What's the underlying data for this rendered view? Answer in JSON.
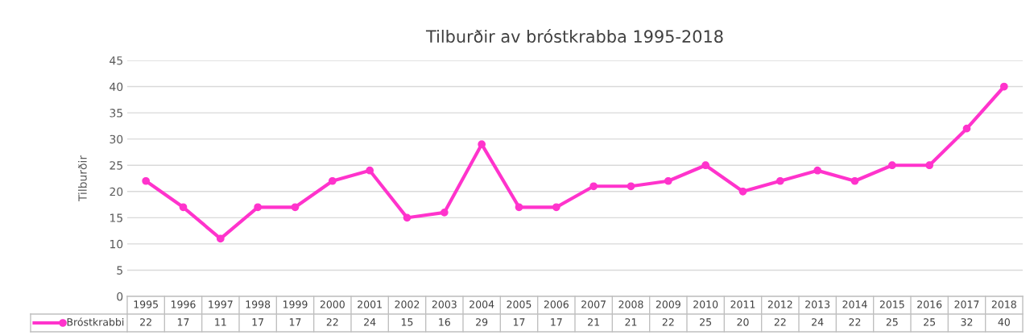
{
  "chart_data": {
    "type": "line",
    "title": "Tilburðir av bróstkrabba 1995-2018",
    "ylabel": "Tilburðir",
    "categories": [
      "1995",
      "1996",
      "1997",
      "1998",
      "1999",
      "2000",
      "2001",
      "2002",
      "2003",
      "2004",
      "2005",
      "2006",
      "2007",
      "2008",
      "2009",
      "2010",
      "2011",
      "2012",
      "2013",
      "2014",
      "2015",
      "2016",
      "2017",
      "2018"
    ],
    "series": [
      {
        "name": "Bróstkrabbi",
        "color": "#ff33cc",
        "values": [
          22,
          17,
          11,
          17,
          17,
          22,
          24,
          15,
          16,
          29,
          17,
          17,
          21,
          21,
          22,
          25,
          20,
          22,
          24,
          22,
          25,
          25,
          32,
          40
        ]
      }
    ],
    "ylim": [
      0,
      45
    ],
    "yticks": [
      0,
      5,
      10,
      15,
      20,
      25,
      30,
      35,
      40,
      45
    ],
    "grid": "y",
    "marker": "circle",
    "line_style": "solid",
    "legend": "bottom left",
    "data_labels": true
  }
}
